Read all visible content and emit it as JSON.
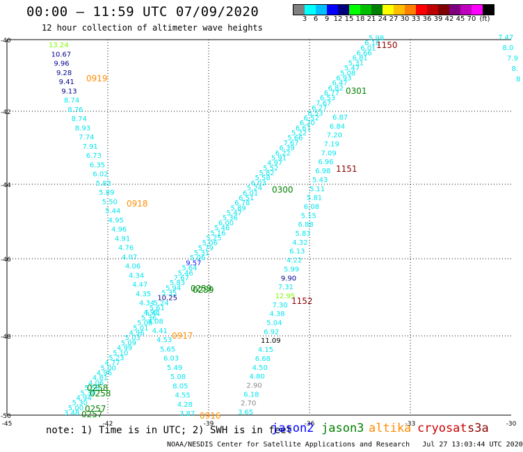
{
  "header": {
    "title": "00:00 – 11:59 UTC 07/09/2020",
    "subtitle": "12 hour collection of altimeter wave heights"
  },
  "colorbar": {
    "unit": "(ft)",
    "colors": [
      "#808080",
      "#00ffff",
      "#00bfff",
      "#0000ff",
      "#00007f",
      "#00ff00",
      "#00bf00",
      "#007f00",
      "#ffff00",
      "#ffbf00",
      "#ff7f00",
      "#ff0000",
      "#bf0000",
      "#7f0000",
      "#7f007f",
      "#bf00bf",
      "#ff00ff",
      "#000000"
    ],
    "labels": [
      "3",
      "6",
      "9",
      "12",
      "15",
      "18",
      "21",
      "24",
      "27",
      "30",
      "33",
      "36",
      "39",
      "42",
      "45",
      "70"
    ]
  },
  "axes": {
    "y_labels": [
      "-40",
      "-42",
      "-44",
      "-46",
      "-48",
      "-50"
    ],
    "x_labels": [
      "-45",
      "-42",
      "-39",
      "-36",
      "-33",
      "-30"
    ]
  },
  "colors": {
    "low": "#00e5ee",
    "blue": "#1010ff",
    "navy": "#00008b",
    "green": "#7cfc00",
    "gray": "#888888",
    "black": "#000000",
    "jason2": "#0000ff",
    "jason3": "#008000",
    "altika": "#ff8c00",
    "cryosat": "#cc0000",
    "s3a": "#8b0000"
  },
  "tracks": [
    {
      "name": "track-left",
      "labels": [
        {
          "t": "13.24",
          "c": "green"
        },
        {
          "t": "10.67",
          "c": "navy"
        },
        {
          "t": "9.96",
          "c": "navy"
        },
        {
          "t": "9.28",
          "c": "navy"
        },
        {
          "t": "9.41",
          "c": "navy"
        },
        {
          "t": "9.13",
          "c": "navy"
        },
        {
          "t": "8.74",
          "c": "low"
        },
        {
          "t": "8.76",
          "c": "low"
        },
        {
          "t": "8.74",
          "c": "low"
        },
        {
          "t": "8.93",
          "c": "low"
        },
        {
          "t": "7.74",
          "c": "low"
        },
        {
          "t": "7.91",
          "c": "low"
        },
        {
          "t": "6.73",
          "c": "low"
        },
        {
          "t": "6.35",
          "c": "low"
        },
        {
          "t": "6.02",
          "c": "low"
        },
        {
          "t": "5.83",
          "c": "low"
        },
        {
          "t": "5.89",
          "c": "low"
        },
        {
          "t": "5.50",
          "c": "low"
        },
        {
          "t": "5.44",
          "c": "low"
        },
        {
          "t": "4.95",
          "c": "low"
        },
        {
          "t": "4.96",
          "c": "low"
        },
        {
          "t": "4.91",
          "c": "low"
        },
        {
          "t": "4.76",
          "c": "low"
        },
        {
          "t": "4.07",
          "c": "low"
        },
        {
          "t": "4.06",
          "c": "low"
        },
        {
          "t": "4.34",
          "c": "low"
        },
        {
          "t": "4.47",
          "c": "low"
        },
        {
          "t": "4.35",
          "c": "low"
        },
        {
          "t": "4.34",
          "c": "low"
        },
        {
          "t": "4.91",
          "c": "low"
        },
        {
          "t": "4.08",
          "c": "low"
        },
        {
          "t": "4.41",
          "c": "low"
        },
        {
          "t": "4.53",
          "c": "low"
        },
        {
          "t": "5.65",
          "c": "low"
        },
        {
          "t": "6.03",
          "c": "low"
        },
        {
          "t": "5.49",
          "c": "low"
        },
        {
          "t": "5.08",
          "c": "low"
        },
        {
          "t": "8.05",
          "c": "low"
        },
        {
          "t": "4.55",
          "c": "low"
        },
        {
          "t": "4.28",
          "c": "low"
        },
        {
          "t": "3.87",
          "c": "low"
        }
      ]
    },
    {
      "name": "track-middle",
      "labels": [
        {
          "t": "5.98",
          "c": "low"
        },
        {
          "t": "6.10",
          "c": "low"
        },
        {
          "t": "6.01",
          "c": "low"
        },
        {
          "t": "6.66",
          "c": "low"
        },
        {
          "t": "6.81",
          "c": "low"
        },
        {
          "t": "5.31",
          "c": "low"
        },
        {
          "t": "5.47",
          "c": "low"
        },
        {
          "t": "5.08",
          "c": "low"
        },
        {
          "t": "6.93",
          "c": "low"
        },
        {
          "t": "6.47",
          "c": "low"
        },
        {
          "t": "6.82",
          "c": "low"
        },
        {
          "t": "6.77",
          "c": "low"
        },
        {
          "t": "6.53",
          "c": "low"
        },
        {
          "t": "7.67",
          "c": "low"
        },
        {
          "t": "6.27",
          "c": "low"
        },
        {
          "t": "8.53",
          "c": "low"
        },
        {
          "t": "6.52",
          "c": "low"
        },
        {
          "t": "6.20",
          "c": "low"
        },
        {
          "t": "6.61",
          "c": "low"
        },
        {
          "t": "5.22",
          "c": "low"
        },
        {
          "t": "5.66",
          "c": "low"
        },
        {
          "t": "7.67",
          "c": "low"
        },
        {
          "t": "6.39",
          "c": "low"
        },
        {
          "t": "6.22",
          "c": "low"
        },
        {
          "t": "5.91",
          "c": "low"
        },
        {
          "t": "4.97",
          "c": "low"
        },
        {
          "t": "5.52",
          "c": "low"
        },
        {
          "t": "5.82",
          "c": "low"
        },
        {
          "t": "5.58",
          "c": "low"
        },
        {
          "t": "6.03",
          "c": "low"
        },
        {
          "t": "5.24",
          "c": "low"
        },
        {
          "t": "6.01",
          "c": "low"
        },
        {
          "t": "6.51",
          "c": "low"
        },
        {
          "t": "6.78",
          "c": "low"
        },
        {
          "t": "5.89",
          "c": "low"
        },
        {
          "t": "5.47",
          "c": "low"
        },
        {
          "t": "5.36",
          "c": "low"
        },
        {
          "t": "6.00",
          "c": "low"
        },
        {
          "t": "5.46",
          "c": "low"
        },
        {
          "t": "5.16",
          "c": "low"
        },
        {
          "t": "5.25",
          "c": "low"
        },
        {
          "t": "5.06",
          "c": "low"
        },
        {
          "t": "5.79",
          "c": "low"
        },
        {
          "t": "5.31",
          "c": "low"
        },
        {
          "t": "5.06",
          "c": "low"
        },
        {
          "t": "9.57",
          "c": "blue"
        },
        {
          "t": "5.64",
          "c": "low"
        },
        {
          "t": "5.46",
          "c": "low"
        },
        {
          "t": "7.67",
          "c": "low"
        },
        {
          "t": "5.83",
          "c": "low"
        },
        {
          "t": "5.94",
          "c": "low"
        },
        {
          "t": "5.35",
          "c": "low"
        },
        {
          "t": "10.25",
          "c": "navy"
        },
        {
          "t": "5.24",
          "c": "low"
        },
        {
          "t": "5.61",
          "c": "low"
        },
        {
          "t": "5.41",
          "c": "low"
        },
        {
          "t": "5.36",
          "c": "low"
        },
        {
          "t": "5.08",
          "c": "low"
        },
        {
          "t": "5.01",
          "c": "low"
        },
        {
          "t": "4.96",
          "c": "low"
        },
        {
          "t": "5.03",
          "c": "low"
        },
        {
          "t": "5.09",
          "c": "low"
        },
        {
          "t": "4.99",
          "c": "low"
        },
        {
          "t": "5.10",
          "c": "low"
        },
        {
          "t": "5.23",
          "c": "low"
        },
        {
          "t": "4.77",
          "c": "low"
        },
        {
          "t": "5.00",
          "c": "low"
        },
        {
          "t": "4.96",
          "c": "low"
        },
        {
          "t": "4.81",
          "c": "low"
        },
        {
          "t": "4.06",
          "c": "low"
        },
        {
          "t": "5.58",
          "c": "low"
        },
        {
          "t": "5.30",
          "c": "low"
        },
        {
          "t": "4.94",
          "c": "low"
        },
        {
          "t": "5.30",
          "c": "low"
        },
        {
          "t": "5.00",
          "c": "low"
        },
        {
          "t": "3.48",
          "c": "low"
        }
      ]
    },
    {
      "name": "track-right",
      "labels": [
        {
          "t": "6.87",
          "c": "low"
        },
        {
          "t": "6.84",
          "c": "low"
        },
        {
          "t": "7.20",
          "c": "low"
        },
        {
          "t": "7.19",
          "c": "low"
        },
        {
          "t": "7.09",
          "c": "low"
        },
        {
          "t": "6.96",
          "c": "low"
        },
        {
          "t": "6.98",
          "c": "low"
        },
        {
          "t": "5.43",
          "c": "low"
        },
        {
          "t": "5.11",
          "c": "low"
        },
        {
          "t": "5.81",
          "c": "low"
        },
        {
          "t": "6.08",
          "c": "low"
        },
        {
          "t": "5.15",
          "c": "low"
        },
        {
          "t": "6.88",
          "c": "low"
        },
        {
          "t": "5.83",
          "c": "low"
        },
        {
          "t": "4.32",
          "c": "low"
        },
        {
          "t": "6.13",
          "c": "low"
        },
        {
          "t": "4.22",
          "c": "low"
        },
        {
          "t": "5.99",
          "c": "low"
        },
        {
          "t": "9.90",
          "c": "navy"
        },
        {
          "t": "7.31",
          "c": "low"
        },
        {
          "t": "12.95",
          "c": "green"
        },
        {
          "t": "7.30",
          "c": "low"
        },
        {
          "t": "4.38",
          "c": "low"
        },
        {
          "t": "5.04",
          "c": "low"
        },
        {
          "t": "6.92",
          "c": "low"
        },
        {
          "t": "11.09",
          "c": "black"
        },
        {
          "t": "4.15",
          "c": "low"
        },
        {
          "t": "6.68",
          "c": "low"
        },
        {
          "t": "4.50",
          "c": "low"
        },
        {
          "t": "4.80",
          "c": "low"
        },
        {
          "t": "2.90",
          "c": "gray"
        },
        {
          "t": "6.18",
          "c": "low"
        },
        {
          "t": "2.70",
          "c": "gray"
        },
        {
          "t": "3.65",
          "c": "low"
        }
      ]
    },
    {
      "name": "track-far-right",
      "labels": [
        {
          "t": "7.47",
          "c": "low"
        },
        {
          "t": "8.0",
          "c": "low"
        },
        {
          "t": "7.9",
          "c": "low"
        },
        {
          "t": "8.",
          "c": "low"
        },
        {
          "t": "8",
          "c": "low"
        }
      ]
    }
  ],
  "time_labels": [
    {
      "t": "1150",
      "c": "s3a"
    },
    {
      "t": "0919",
      "c": "altika"
    },
    {
      "t": "0301",
      "c": "jason3"
    },
    {
      "t": "1151",
      "c": "s3a"
    },
    {
      "t": "0300",
      "c": "jason3"
    },
    {
      "t": "0918",
      "c": "altika"
    },
    {
      "t": "0259",
      "c": "jason3"
    },
    {
      "t": "0259",
      "c": "jason3"
    },
    {
      "t": "1152",
      "c": "s3a"
    },
    {
      "t": "0917",
      "c": "altika"
    },
    {
      "t": "0258",
      "c": "jason3"
    },
    {
      "t": "0258",
      "c": "jason3"
    },
    {
      "t": "0257",
      "c": "jason3"
    },
    {
      "t": "0257",
      "c": "jason3"
    },
    {
      "t": "0916",
      "c": "altika"
    }
  ],
  "footer": {
    "note": "note: 1) Time is in UTC; 2) SWH is in feet",
    "sats": [
      {
        "name": "jason2",
        "c": "jason2"
      },
      {
        "name": "jason3",
        "c": "jason3"
      },
      {
        "name": "altika",
        "c": "altika"
      },
      {
        "name": "cryosat",
        "c": "cryosat"
      },
      {
        "name": "s3a",
        "c": "s3a"
      }
    ],
    "credit": "NOAA/NESDIS Center for Satellite Applications and Research   Jul 27 13:03:44 UTC 2020"
  }
}
